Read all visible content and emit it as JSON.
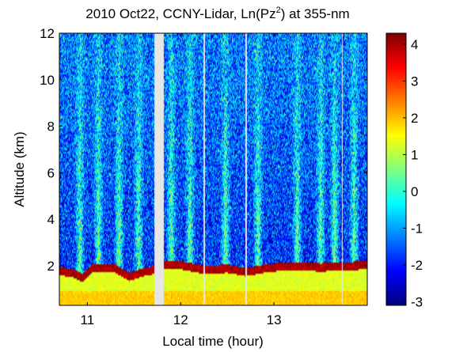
{
  "chart_data": {
    "type": "heatmap",
    "title": {
      "prefix": "2010 Oct22, CCNY-Lidar, Ln(Pz",
      "superscript": "2",
      "suffix": ") at 355-nm"
    },
    "xlabel": "Local time (hour)",
    "ylabel": "Altitude (km)",
    "xlim": [
      10.7,
      14.0
    ],
    "ylim": [
      0.3,
      12.0
    ],
    "x_ticks": [
      11,
      12,
      13
    ],
    "y_ticks": [
      2,
      4,
      6,
      8,
      10,
      12
    ],
    "colorbar": {
      "colormap": "jet",
      "range": [
        -3.1,
        4.3
      ],
      "ticks": [
        -3,
        -2,
        -1,
        0,
        1,
        2,
        3,
        4
      ]
    },
    "no_data_gaps_hours": [
      [
        11.72,
        11.82
      ],
      [
        12.24,
        12.26
      ],
      [
        12.69,
        12.71
      ],
      [
        13.73,
        13.74
      ]
    ],
    "layers": {
      "near_surface_value": 1.9,
      "boundary_layer_value": 1.3,
      "boundary_layer_top_km": [
        [
          10.7,
          1.8
        ],
        [
          10.85,
          1.7
        ],
        [
          10.95,
          1.5
        ],
        [
          11.05,
          1.9
        ],
        [
          11.3,
          1.9
        ],
        [
          11.45,
          1.55
        ],
        [
          11.6,
          1.75
        ],
        [
          11.72,
          1.85
        ],
        [
          11.82,
          2.05
        ],
        [
          12.0,
          2.05
        ],
        [
          12.25,
          1.85
        ],
        [
          12.5,
          1.9
        ],
        [
          12.7,
          1.75
        ],
        [
          12.9,
          1.9
        ],
        [
          13.1,
          2.0
        ],
        [
          13.3,
          2.0
        ],
        [
          13.5,
          1.95
        ],
        [
          13.75,
          2.0
        ],
        [
          14.0,
          2.05
        ]
      ],
      "aerosol_top_value": 4.0,
      "free_troposphere_value": -1.9,
      "cloud_streaks_hours": [
        10.92,
        11.12,
        11.34,
        11.55,
        11.9,
        12.1,
        12.48,
        12.83,
        13.25,
        13.5,
        13.65,
        13.86
      ]
    }
  }
}
